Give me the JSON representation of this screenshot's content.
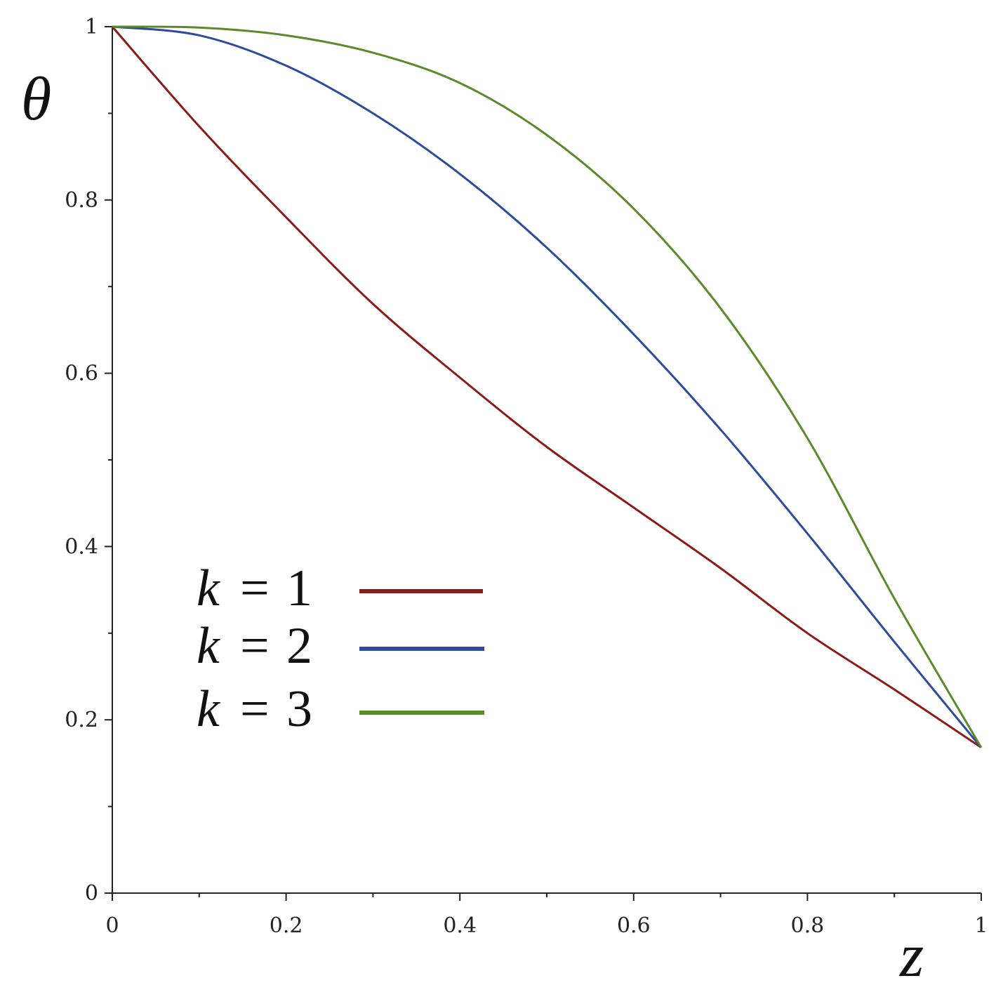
{
  "chart_data": {
    "type": "line",
    "xlabel": "z",
    "ylabel": "θ",
    "xlim": [
      0,
      1
    ],
    "ylim": [
      0,
      1
    ],
    "x_ticks": [
      {
        "value": 0,
        "label": "0"
      },
      {
        "value": 0.2,
        "label": "0.2"
      },
      {
        "value": 0.4,
        "label": "0.4"
      },
      {
        "value": 0.6,
        "label": "0.6"
      },
      {
        "value": 0.8,
        "label": "0.8"
      },
      {
        "value": 1,
        "label": "1"
      }
    ],
    "y_ticks": [
      {
        "value": 0,
        "label": "0"
      },
      {
        "value": 0.2,
        "label": "0.2"
      },
      {
        "value": 0.4,
        "label": "0.4"
      },
      {
        "value": 0.6,
        "label": "0.6"
      },
      {
        "value": 0.8,
        "label": "0.8"
      },
      {
        "value": 1,
        "label": "1"
      }
    ],
    "minor_x": [
      0.1,
      0.3,
      0.5,
      0.7,
      0.9
    ],
    "minor_y": [
      0.1,
      0.3,
      0.5,
      0.7,
      0.9
    ],
    "grid": false,
    "legend_position": "lower-left",
    "x": [
      0,
      0.1,
      0.2,
      0.3,
      0.4,
      0.5,
      0.6,
      0.7,
      0.8,
      0.9,
      1.0
    ],
    "series": [
      {
        "legend_k": "k",
        "legend_eq": "=",
        "legend_num": "1",
        "color": "#8b1a1a",
        "values": [
          1.0,
          0.885,
          0.78,
          0.68,
          0.595,
          0.515,
          0.445,
          0.375,
          0.3,
          0.235,
          0.168
        ]
      },
      {
        "legend_k": "k",
        "legend_eq": "=",
        "legend_num": "2",
        "color": "#2e4a9a",
        "values": [
          1.0,
          0.99,
          0.955,
          0.9,
          0.83,
          0.745,
          0.645,
          0.535,
          0.415,
          0.29,
          0.168
        ]
      },
      {
        "legend_k": "k",
        "legend_eq": "=",
        "legend_num": "3",
        "color": "#5a8a2a",
        "values": [
          1.0,
          0.999,
          0.99,
          0.97,
          0.935,
          0.875,
          0.79,
          0.675,
          0.525,
          0.34,
          0.168
        ]
      }
    ]
  }
}
